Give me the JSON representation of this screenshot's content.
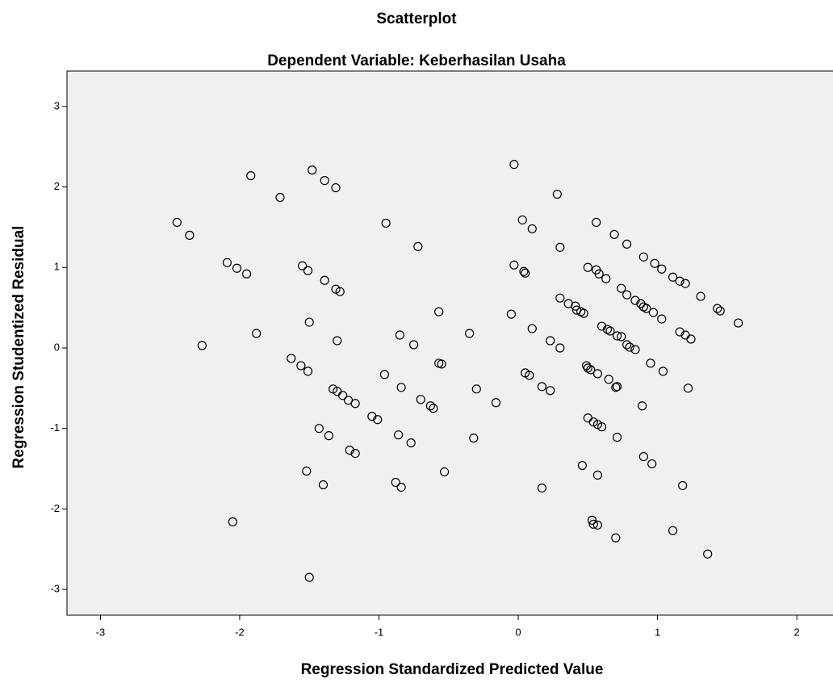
{
  "chart_data": {
    "type": "scatter",
    "title": "Scatterplot",
    "subtitle": "Dependent Variable: Keberhasilan Usaha",
    "x_label": "Regression Standardized Predicted Value",
    "y_label": "Regression Studentized Residual",
    "xlim": [
      -3.24,
      2.26
    ],
    "ylim": [
      -3.32,
      3.44
    ],
    "xticks": [
      -3,
      -2,
      -1,
      0,
      1,
      2
    ],
    "yticks": [
      -3,
      -2,
      -1,
      0,
      1,
      2,
      3
    ],
    "color": "#000000",
    "x": [
      -2.45,
      -2.36,
      -2.27,
      -2.09,
      -2.02,
      -1.95,
      -1.92,
      -2.05,
      -1.88,
      -1.71,
      -1.63,
      -1.56,
      -1.55,
      -1.51,
      -1.51,
      -1.5,
      -1.48,
      -1.39,
      -1.31,
      -1.39,
      -1.31,
      -1.28,
      -1.3,
      -1.33,
      -1.3,
      -1.26,
      -1.22,
      -1.17,
      -1.43,
      -1.36,
      -1.21,
      -1.17,
      -1.52,
      -1.4,
      -1.5,
      -0.95,
      -0.96,
      -1.05,
      -1.01,
      -0.85,
      -0.84,
      -0.75,
      -0.86,
      -0.77,
      -0.88,
      -0.84,
      -0.72,
      -0.7,
      -0.63,
      -0.61,
      -0.57,
      -0.57,
      -0.55,
      -0.53,
      -0.35,
      -0.3,
      -0.32,
      -0.16,
      -0.03,
      -0.05,
      -0.03,
      0.03,
      0.04,
      0.05,
      0.05,
      0.08,
      0.1,
      0.1,
      0.17,
      0.17,
      0.23,
      0.23,
      0.28,
      0.3,
      0.3,
      0.3,
      0.36,
      0.41,
      0.42,
      0.45,
      0.47,
      0.46,
      0.49,
      0.5,
      0.52,
      0.5,
      0.53,
      0.54,
      0.57,
      0.54,
      0.57,
      0.6,
      0.57,
      0.57,
      0.56,
      0.5,
      0.56,
      0.58,
      0.63,
      0.6,
      0.64,
      0.66,
      0.65,
      0.71,
      0.7,
      0.71,
      0.74,
      0.71,
      0.7,
      0.69,
      0.74,
      0.78,
      0.78,
      0.78,
      0.8,
      0.84,
      0.84,
      0.88,
      0.9,
      0.92,
      0.9,
      0.89,
      0.9,
      0.96,
      0.95,
      0.97,
      0.98,
      1.03,
      1.03,
      1.04,
      1.11,
      1.11,
      1.16,
      1.16,
      1.18,
      1.2,
      1.2,
      1.24,
      1.22,
      1.31,
      1.36,
      1.43,
      1.45,
      1.58
    ],
    "y": [
      1.56,
      1.4,
      0.03,
      1.06,
      0.99,
      0.92,
      2.14,
      -2.16,
      0.18,
      1.87,
      -0.13,
      -0.22,
      1.02,
      0.96,
      -0.29,
      0.32,
      2.21,
      2.08,
      1.99,
      0.84,
      0.73,
      0.7,
      0.09,
      -0.51,
      -0.54,
      -0.59,
      -0.65,
      -0.69,
      -1.0,
      -1.09,
      -1.27,
      -1.31,
      -1.53,
      -1.7,
      -2.85,
      1.55,
      -0.33,
      -0.85,
      -0.89,
      0.16,
      -0.49,
      0.04,
      -1.08,
      -1.18,
      -1.67,
      -1.73,
      1.26,
      -0.64,
      -0.72,
      -0.75,
      0.45,
      -0.19,
      -0.2,
      -1.54,
      0.18,
      -0.51,
      -1.12,
      -0.68,
      2.28,
      0.42,
      1.03,
      1.59,
      0.95,
      0.93,
      -0.31,
      -0.34,
      1.48,
      0.24,
      -1.74,
      -0.48,
      -0.53,
      0.09,
      1.91,
      1.25,
      0.62,
      0.0,
      0.55,
      0.52,
      0.47,
      0.45,
      0.43,
      -1.46,
      -0.22,
      -0.25,
      -0.27,
      -0.87,
      -2.14,
      -2.19,
      -2.2,
      -0.92,
      -0.95,
      -0.98,
      -1.58,
      -0.32,
      1.56,
      1.0,
      0.97,
      0.92,
      0.86,
      0.27,
      0.23,
      0.21,
      -0.39,
      -0.48,
      -0.49,
      0.15,
      0.14,
      -1.11,
      -2.36,
      1.41,
      0.74,
      0.66,
      1.29,
      0.04,
      0.01,
      -0.02,
      0.59,
      0.55,
      0.51,
      0.49,
      1.13,
      -0.72,
      -1.35,
      -1.44,
      -0.19,
      0.44,
      1.05,
      0.98,
      0.36,
      -0.29,
      -2.27,
      0.88,
      0.2,
      0.83,
      -1.71,
      0.8,
      0.16,
      0.11,
      -0.5,
      0.64,
      -2.56,
      0.49,
      0.46,
      0.31
    ]
  }
}
